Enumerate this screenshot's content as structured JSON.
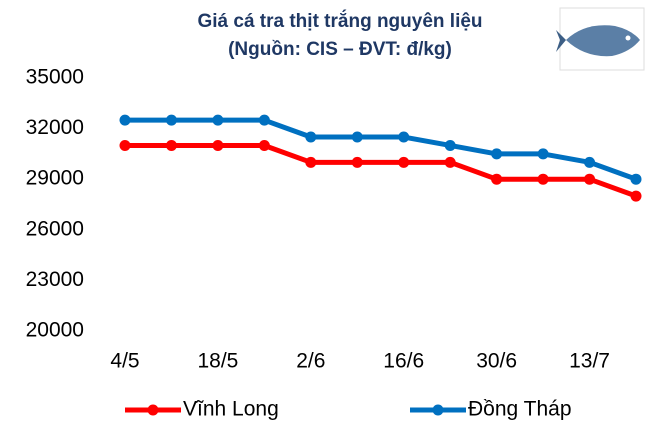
{
  "chart_data": {
    "type": "line",
    "title": "Giá cá tra thịt trắng nguyên liệu",
    "subtitle": "(Nguồn: CIS – ĐVT: đ/kg)",
    "categories": [
      "4/5",
      null,
      "18/5",
      null,
      "2/6",
      null,
      "16/6",
      null,
      "30/6",
      null,
      "13/7",
      null
    ],
    "series": [
      {
        "name": "Vĩnh Long",
        "color": "#ff0000",
        "values": [
          31000,
          31000,
          31000,
          31000,
          30000,
          30000,
          30000,
          30000,
          29000,
          29000,
          29000,
          28000
        ]
      },
      {
        "name": "Đồng Tháp",
        "color": "#0070c0",
        "values": [
          32500,
          32500,
          32500,
          32500,
          31500,
          31500,
          31500,
          31000,
          30500,
          30500,
          30000,
          29000
        ]
      }
    ],
    "ylim": [
      20000,
      35000
    ],
    "yticks": [
      20000,
      23000,
      26000,
      29000,
      32000,
      35000
    ],
    "grid": false,
    "legend": "bottom"
  }
}
